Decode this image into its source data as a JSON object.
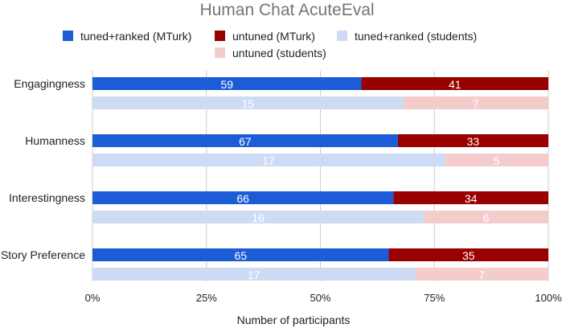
{
  "chart_data": {
    "type": "bar",
    "orientation": "horizontal",
    "stacked": "percent",
    "title": "Human Chat AcuteEval",
    "xlabel": "Number of participants",
    "ylabel": "",
    "xlim": [
      0,
      100
    ],
    "x_ticks": [
      "0%",
      "25%",
      "50%",
      "75%",
      "100%"
    ],
    "grid": true,
    "legend_position": "top",
    "categories": [
      "Engagingness",
      "Humanness",
      "Interestingness",
      "Story Preference"
    ],
    "groups": [
      {
        "series": [
          {
            "name": "tuned+ranked (MTurk)",
            "color": "#1c5cd6",
            "values": [
              59,
              67,
              66,
              65
            ]
          },
          {
            "name": "untuned (MTurk)",
            "color": "#990000",
            "values": [
              41,
              33,
              34,
              35
            ]
          }
        ]
      },
      {
        "series": [
          {
            "name": "tuned+ranked (students)",
            "color": "#cddcf4",
            "values": [
              15,
              17,
              16,
              17
            ]
          },
          {
            "name": "untuned (students)",
            "color": "#f4cccc",
            "values": [
              7,
              5,
              6,
              7
            ]
          }
        ]
      }
    ]
  }
}
